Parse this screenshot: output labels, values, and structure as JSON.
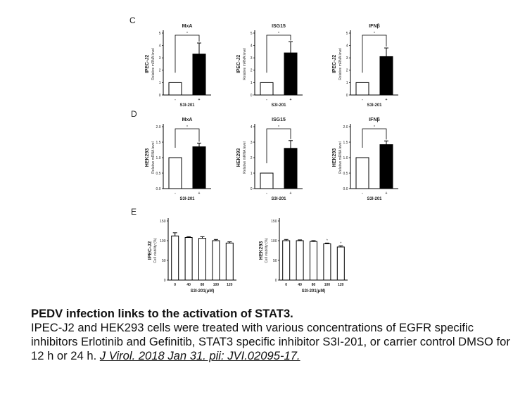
{
  "figure": {
    "panel_labels": [
      "C",
      "D",
      "E"
    ]
  },
  "chart_data": [
    {
      "panel": "C",
      "type": "bar",
      "title": "MxA",
      "context_label": "IPEC-J2",
      "ylabel": "Relative mRNA level",
      "xlabel": "S3I-201",
      "categories": [
        "-",
        "+"
      ],
      "values": [
        1.0,
        3.3
      ],
      "errors": [
        0,
        0.9
      ],
      "ylim": [
        0,
        5
      ],
      "yticks": [
        "0",
        "1",
        "2",
        "3",
        "4",
        "5"
      ],
      "significance": "*"
    },
    {
      "panel": "C",
      "type": "bar",
      "title": "ISG15",
      "context_label": "IPEC-J2",
      "ylabel": "Relative mRNA level",
      "xlabel": "S3I-201",
      "categories": [
        "-",
        "+"
      ],
      "values": [
        1.0,
        3.4
      ],
      "errors": [
        0,
        0.9
      ],
      "ylim": [
        0,
        5
      ],
      "yticks": [
        "0",
        "1",
        "2",
        "3",
        "4",
        "5"
      ],
      "significance": "*"
    },
    {
      "panel": "C",
      "type": "bar",
      "title": "IFNβ",
      "context_label": "IPEC-J2",
      "ylabel": "Relative mRNA level",
      "xlabel": "S3I-201",
      "categories": [
        "-",
        "+"
      ],
      "values": [
        1.0,
        3.1
      ],
      "errors": [
        0,
        0.7
      ],
      "ylim": [
        0,
        5
      ],
      "yticks": [
        "0",
        "1",
        "2",
        "3",
        "4",
        "5"
      ],
      "significance": "*"
    },
    {
      "panel": "D",
      "type": "bar",
      "title": "MxA",
      "context_label": "HEK293",
      "ylabel": "Relative mRNA level",
      "xlabel": "S3I-201",
      "categories": [
        "-",
        "+"
      ],
      "values": [
        1.0,
        1.35
      ],
      "errors": [
        0,
        0.12
      ],
      "ylim": [
        0,
        2.0
      ],
      "yticks": [
        "0.0",
        "0.5",
        "1.0",
        "1.5",
        "2.0"
      ],
      "significance": "*"
    },
    {
      "panel": "D",
      "type": "bar",
      "title": "ISG15",
      "context_label": "HEK293",
      "ylabel": "Relative mRNA level",
      "xlabel": "S3I-201",
      "categories": [
        "-",
        "+"
      ],
      "values": [
        1.0,
        2.6
      ],
      "errors": [
        0,
        0.5
      ],
      "ylim": [
        0,
        4
      ],
      "yticks": [
        "0",
        "1",
        "2",
        "3",
        "4"
      ],
      "significance": "*"
    },
    {
      "panel": "D",
      "type": "bar",
      "title": "IFNβ",
      "context_label": "HEK293",
      "ylabel": "Relative mRNA level",
      "xlabel": "S3I-201",
      "categories": [
        "-",
        "+"
      ],
      "values": [
        1.0,
        1.42
      ],
      "errors": [
        0,
        0.12
      ],
      "ylim": [
        0,
        2.0
      ],
      "yticks": [
        "0.0",
        "0.5",
        "1.0",
        "1.5",
        "2.0"
      ],
      "significance": "*"
    },
    {
      "panel": "E",
      "type": "bar",
      "title": "",
      "context_label": "IPEC-J2",
      "ylabel": "Cell viability (%)",
      "xlabel": "S3I-201(μM)",
      "categories": [
        "0",
        "40",
        "80",
        "100",
        "120"
      ],
      "values": [
        112,
        108,
        106,
        100,
        94
      ],
      "errors": [
        8,
        2,
        4,
        3,
        3
      ],
      "ylim": [
        0,
        150
      ],
      "yticks": [
        "0",
        "50",
        "100",
        "150"
      ],
      "significance": ""
    },
    {
      "panel": "E",
      "type": "bar",
      "title": "",
      "context_label": "HEK293",
      "ylabel": "Cell viability (%)",
      "xlabel": "S3I-201(μM)",
      "categories": [
        "0",
        "40",
        "80",
        "100",
        "120"
      ],
      "values": [
        100,
        100,
        98,
        92,
        84
      ],
      "errors": [
        3,
        2,
        2,
        2,
        3
      ],
      "ylim": [
        0,
        150
      ],
      "yticks": [
        "0",
        "50",
        "100",
        "150"
      ],
      "significance": "*",
      "significant_bars": [
        3,
        4
      ]
    }
  ],
  "caption": {
    "title": "PEDV infection links to the activation of STAT3.",
    "body": "IPEC-J2 and HEK293 cells were treated with various concentrations of EGFR specific inhibitors Erlotinib and Gefinitib, STAT3 specific inhibitor S3I-201, or carrier control DMSO for 12 h or 24 h. ",
    "reference": "J Virol. 2018 Jan 31. pii: JVI.02095-17."
  }
}
